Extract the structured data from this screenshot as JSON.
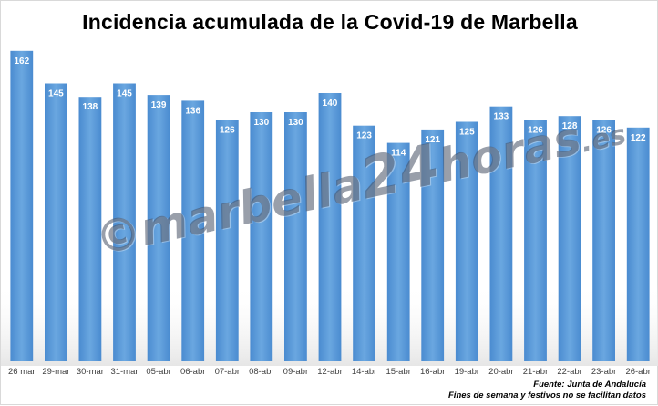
{
  "chart_data": {
    "type": "bar",
    "title": "Incidencia acumulada de la Covid-19 de Marbella",
    "categories": [
      "26 mar",
      "29-mar",
      "30-mar",
      "31-mar",
      "05-abr",
      "06-abr",
      "07-abr",
      "08-abr",
      "09-abr",
      "12-abr",
      "14-abr",
      "15-abr",
      "16-abr",
      "19-abr",
      "20-abr",
      "21-abr",
      "22-abr",
      "23-abr",
      "26-abr"
    ],
    "values": [
      162,
      145,
      138,
      145,
      139,
      136,
      126,
      130,
      130,
      140,
      123,
      114,
      121,
      125,
      133,
      126,
      128,
      126,
      122
    ],
    "ylim": [
      0,
      170
    ],
    "xlabel": "",
    "ylabel": "",
    "grid": false,
    "bar_color": "#5b9bd5",
    "data_labels": true
  },
  "watermark": {
    "prefix": "©",
    "name": "marbella",
    "number": "24",
    "suffix": "horas",
    "tld": ".es"
  },
  "footer": {
    "source": "Fuente: Junta de Andalucía",
    "note": "Fines de semana y festivos no se facilitan datos"
  }
}
